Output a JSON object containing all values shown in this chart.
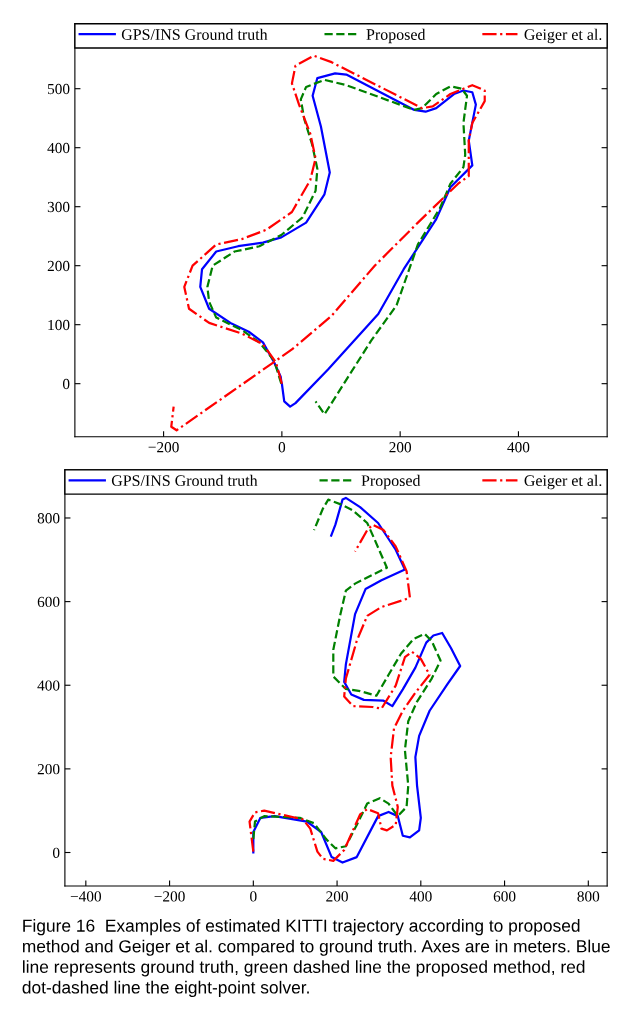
{
  "chart_data": [
    {
      "type": "line",
      "legend": "top",
      "grid": false,
      "marker": "none",
      "xlim": [
        -350,
        550
      ],
      "ylim": [
        -90,
        610
      ],
      "xticks": [
        -200,
        0,
        200,
        400
      ],
      "yticks": [
        0,
        100,
        200,
        300,
        400,
        500
      ],
      "series": [
        {
          "name": "GPS/INS Ground truth",
          "color": "#0000ff",
          "line_style": "solid",
          "x": [
            0,
            4,
            14,
            23,
            78,
            163,
            206,
            261,
            285,
            322,
            316,
            328,
            322,
            307,
            291,
            261,
            243,
            224,
            109,
            90,
            60,
            52,
            66,
            81,
            72,
            41,
            -1,
            -32,
            -74,
            -111,
            -135,
            -138,
            -123,
            -87,
            -56,
            -32,
            -13,
            -2,
            -1
          ],
          "values": [
            0,
            -30,
            -39,
            -33,
            24,
            118,
            194,
            279,
            333,
            370,
            412,
            473,
            494,
            497,
            491,
            467,
            461,
            464,
            524,
            526,
            518,
            488,
            436,
            358,
            321,
            273,
            248,
            239,
            233,
            224,
            194,
            164,
            127,
            103,
            88,
            70,
            36,
            12,
            4
          ]
        },
        {
          "name": "Proposed",
          "color": "#008000",
          "line_style": "dashed",
          "x": [
            -1,
            -13,
            -38,
            -68,
            -111,
            -123,
            -126,
            -117,
            -80,
            -38,
            -1,
            35,
            57,
            60,
            51,
            38,
            32,
            41,
            72,
            109,
            224,
            237,
            261,
            285,
            304,
            313,
            307,
            310,
            307,
            285,
            267,
            230,
            194,
            151,
            72,
            57
          ],
          "values": [
            0,
            39,
            70,
            91,
            112,
            139,
            164,
            200,
            224,
            233,
            252,
            282,
            327,
            364,
            406,
            448,
            482,
            503,
            515,
            506,
            464,
            467,
            491,
            504,
            500,
            488,
            442,
            388,
            367,
            339,
            297,
            236,
            133,
            73,
            -52,
            -30
          ]
        },
        {
          "name": "Geiger et al.",
          "color": "#ff0000",
          "line_style": "dashdot",
          "x": [
            0,
            -10,
            -32,
            -68,
            -123,
            -157,
            -165,
            -151,
            -111,
            -68,
            -26,
            17,
            48,
            57,
            48,
            29,
            17,
            23,
            54,
            84,
            237,
            255,
            285,
            322,
            343,
            343,
            322,
            316,
            316,
            298,
            230,
            157,
            84,
            17,
            -178,
            -187,
            -183
          ],
          "values": [
            0,
            36,
            67,
            85,
            103,
            127,
            164,
            200,
            236,
            245,
            261,
            291,
            345,
            382,
            424,
            473,
            509,
            539,
            556,
            545,
            467,
            470,
            491,
            506,
            497,
            479,
            442,
            412,
            352,
            339,
            273,
            200,
            115,
            58,
            -79,
            -73,
            -39
          ]
        }
      ]
    },
    {
      "type": "line",
      "legend": "top",
      "grid": false,
      "marker": "none",
      "xlim": [
        -450,
        845
      ],
      "ylim": [
        -80,
        915
      ],
      "xticks": [
        -400,
        -200,
        0,
        200,
        400,
        600,
        800
      ],
      "yticks": [
        0,
        200,
        400,
        600,
        800
      ],
      "series": [
        {
          "name": "GPS/INS Ground truth",
          "color": "#0000ff",
          "line_style": "solid",
          "x": [
            0,
            0,
            17,
            51,
            128,
            162,
            187,
            213,
            247,
            298,
            323,
            345,
            357,
            374,
            396,
            400,
            391,
            387,
            396,
            421,
            464,
            494,
            472,
            451,
            430,
            413,
            387,
            357,
            332,
            311,
            264,
            234,
            217,
            221,
            243,
            268,
            306,
            362,
            340,
            298,
            255,
            221,
            213,
            196,
            186
          ],
          "values": [
            0,
            49,
            83,
            87,
            74,
            49,
            -11,
            -24,
            -11,
            87,
            97,
            87,
            40,
            36,
            53,
            83,
            160,
            228,
            279,
            339,
            403,
            446,
            489,
            525,
            519,
            502,
            442,
            390,
            350,
            363,
            365,
            378,
            408,
            450,
            570,
            630,
            651,
            677,
            724,
            788,
            826,
            848,
            844,
            784,
            758
          ]
        },
        {
          "name": "Proposed",
          "color": "#008000",
          "line_style": "dashed",
          "x": [
            0,
            4,
            26,
            111,
            145,
            174,
            196,
            221,
            247,
            272,
            302,
            323,
            345,
            366,
            370,
            362,
            370,
            391,
            426,
            447,
            426,
            409,
            383,
            353,
            323,
            294,
            255,
            221,
            191,
            191,
            208,
            221,
            243,
            319,
            306,
            289,
            272,
            238,
            213,
            179,
            166,
            145
          ],
          "values": [
            32,
            74,
            87,
            83,
            70,
            32,
            10,
            15,
            66,
            117,
            130,
            117,
            87,
            109,
            160,
            245,
            314,
            361,
            416,
            459,
            506,
            523,
            511,
            476,
            425,
            375,
            386,
            391,
            421,
            485,
            570,
            626,
            643,
            681,
            711,
            750,
            788,
            818,
            831,
            844,
            822,
            771
          ]
        },
        {
          "name": "Geiger et al.",
          "color": "#ff0000",
          "line_style": "dashdot",
          "x": [
            0,
            -9,
            4,
            26,
            119,
            136,
            153,
            166,
            191,
            217,
            255,
            272,
            298,
            306,
            319,
            340,
            345,
            332,
            328,
            336,
            357,
            387,
            421,
            400,
            379,
            362,
            340,
            306,
            285,
            238,
            217,
            221,
            247,
            272,
            306,
            374,
            366,
            340,
            311,
            285,
            272,
            243
          ],
          "values": [
            2,
            74,
            96,
            100,
            79,
            57,
            2,
            -15,
            -20,
            6,
            91,
            104,
            94,
            57,
            53,
            66,
            109,
            160,
            228,
            297,
            339,
            382,
            425,
            463,
            480,
            467,
            399,
            344,
            348,
            350,
            373,
            416,
            506,
            566,
            587,
            609,
            673,
            732,
            771,
            784,
            771,
            720
          ]
        }
      ],
      "annotations": [
        "Figure 16  Examples of estimated KITTI trajectory according to proposed method and Geiger et al. compared to ground truth. Axes are in meters. Blue line represents ground truth, green dashed line the proposed method, red dot-dashed line the eight-point solver."
      ]
    }
  ]
}
